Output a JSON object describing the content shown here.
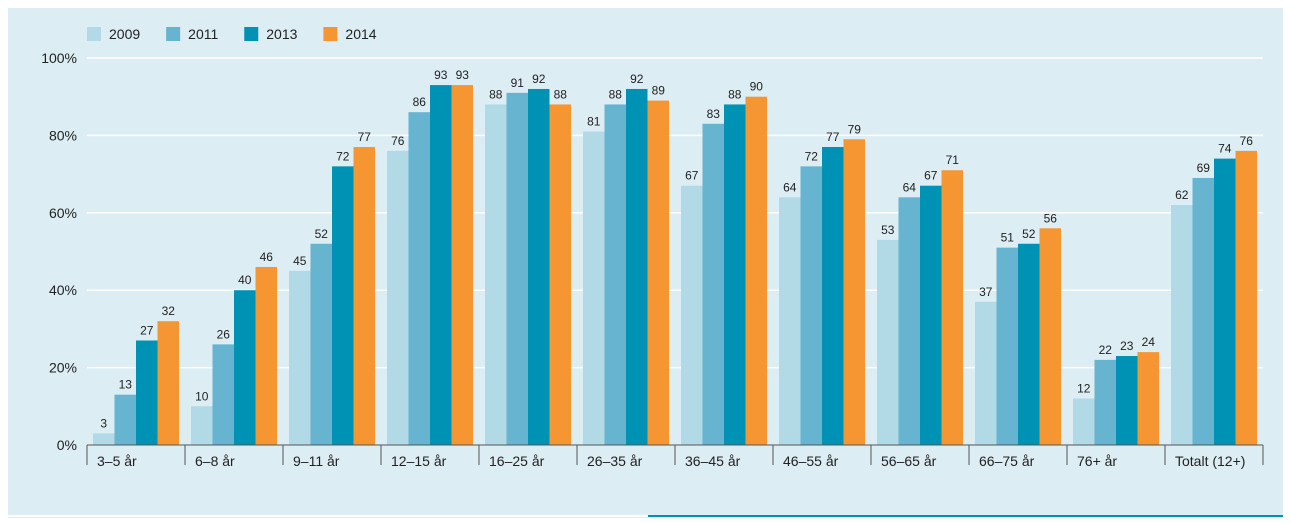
{
  "chart_data": {
    "type": "bar",
    "title": "",
    "xlabel": "",
    "ylabel": "",
    "ylim": [
      0,
      100
    ],
    "yticks": [
      0,
      20,
      40,
      60,
      80,
      100
    ],
    "ytick_labels": [
      "0%",
      "20%",
      "40%",
      "60%",
      "80%",
      "100%"
    ],
    "grid": true,
    "legend_position": "top-left",
    "categories": [
      "3–5 år",
      "6–8 år",
      "9–11 år",
      "12–15 år",
      "16–25 år",
      "26–35 år",
      "36–45 år",
      "46–55 år",
      "56–65 år",
      "66–75 år",
      "76+ år",
      "Totalt (12+)"
    ],
    "series": [
      {
        "name": "2009",
        "color": "#b2d9e6",
        "values": [
          3,
          10,
          45,
          76,
          88,
          81,
          67,
          64,
          53,
          37,
          12,
          62
        ]
      },
      {
        "name": "2011",
        "color": "#66b4cf",
        "values": [
          13,
          26,
          52,
          86,
          91,
          88,
          83,
          72,
          64,
          51,
          22,
          69
        ]
      },
      {
        "name": "2013",
        "color": "#0092b5",
        "values": [
          27,
          40,
          72,
          93,
          92,
          92,
          88,
          77,
          67,
          52,
          23,
          74
        ]
      },
      {
        "name": "2014",
        "color": "#f59632",
        "values": [
          32,
          46,
          77,
          93,
          88,
          89,
          90,
          79,
          71,
          56,
          24,
          76
        ]
      }
    ]
  },
  "colors": {
    "panel_background": "#dcedf4",
    "gridline": "#ffffff",
    "axis": "#555555",
    "bottom_rule": "#0092b5"
  }
}
